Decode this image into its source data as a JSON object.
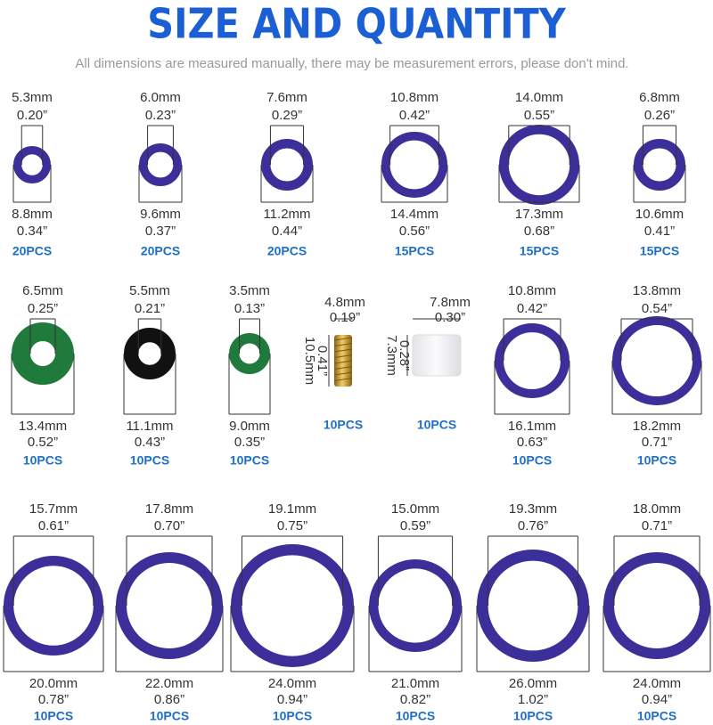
{
  "header": {
    "title": "SIZE AND QUANTITY",
    "subtitle": "All dimensions are measured manually, there may be measurement errors, please don't mind."
  },
  "items": [
    {
      "inner_mm": "5.3mm",
      "inner_in": "0.20”",
      "outer_mm": "8.8mm",
      "outer_in": "0.34”",
      "quantity": "20PCS"
    },
    {
      "inner_mm": "6.0mm",
      "inner_in": "0.23”",
      "outer_mm": "9.6mm",
      "outer_in": "0.37”",
      "quantity": "20PCS"
    },
    {
      "inner_mm": "7.6mm",
      "inner_in": "0.29”",
      "outer_mm": "11.2mm",
      "outer_in": "0.44”",
      "quantity": "20PCS"
    },
    {
      "inner_mm": "10.8mm",
      "inner_in": "0.42”",
      "outer_mm": "14.4mm",
      "outer_in": "0.56”",
      "quantity": "15PCS"
    },
    {
      "inner_mm": "14.0mm",
      "inner_in": "0.55”",
      "outer_mm": "17.3mm",
      "outer_in": "0.68”",
      "quantity": "15PCS"
    },
    {
      "inner_mm": "6.8mm",
      "inner_in": "0.26”",
      "outer_mm": "10.6mm",
      "outer_in": "0.41”",
      "quantity": "15PCS"
    },
    {
      "inner_mm": "6.5mm",
      "inner_in": "0.25”",
      "outer_mm": "13.4mm",
      "outer_in": "0.52”",
      "quantity": "10PCS"
    },
    {
      "inner_mm": "5.5mm",
      "inner_in": "0.21”",
      "outer_mm": "11.1mm",
      "outer_in": "0.43”",
      "quantity": "10PCS"
    },
    {
      "inner_mm": "3.5mm",
      "inner_in": "0.13”",
      "outer_mm": "9.0mm",
      "outer_in": "0.35”",
      "quantity": "10PCS"
    },
    {
      "width_mm": "4.8mm",
      "width_in": "0.19”",
      "length_mm": "10.5mm",
      "length_in": "0.41”",
      "quantity": "10PCS"
    },
    {
      "width_mm": "7.8mm",
      "width_in": "0.30”",
      "length_mm": "7.3mm",
      "length_in": "0.28”",
      "quantity": "10PCS"
    },
    {
      "inner_mm": "10.8mm",
      "inner_in": "0.42”",
      "outer_mm": "16.1mm",
      "outer_in": "0.63”",
      "quantity": "10PCS"
    },
    {
      "inner_mm": "13.8mm",
      "inner_in": "0.54”",
      "outer_mm": "18.2mm",
      "outer_in": "0.71”",
      "quantity": "10PCS"
    },
    {
      "inner_mm": "15.7mm",
      "inner_in": "0.61”",
      "outer_mm": "20.0mm",
      "outer_in": "0.78”",
      "quantity": "10PCS"
    },
    {
      "inner_mm": "17.8mm",
      "inner_in": "0.70”",
      "outer_mm": "22.0mm",
      "outer_in": "0.86”",
      "quantity": "10PCS"
    },
    {
      "inner_mm": "19.1mm",
      "inner_in": "0.75”",
      "outer_mm": "24.0mm",
      "outer_in": "0.94”",
      "quantity": "10PCS"
    },
    {
      "inner_mm": "15.0mm",
      "inner_in": "0.59”",
      "outer_mm": "21.0mm",
      "outer_in": "0.82”",
      "quantity": "10PCS"
    },
    {
      "inner_mm": "19.3mm",
      "inner_in": "0.76”",
      "outer_mm": "26.0mm",
      "outer_in": "1.02”",
      "quantity": "10PCS"
    },
    {
      "inner_mm": "18.0mm",
      "inner_in": "0.71”",
      "outer_mm": "24.0mm",
      "outer_in": "0.94”",
      "quantity": "10PCS"
    }
  ]
}
